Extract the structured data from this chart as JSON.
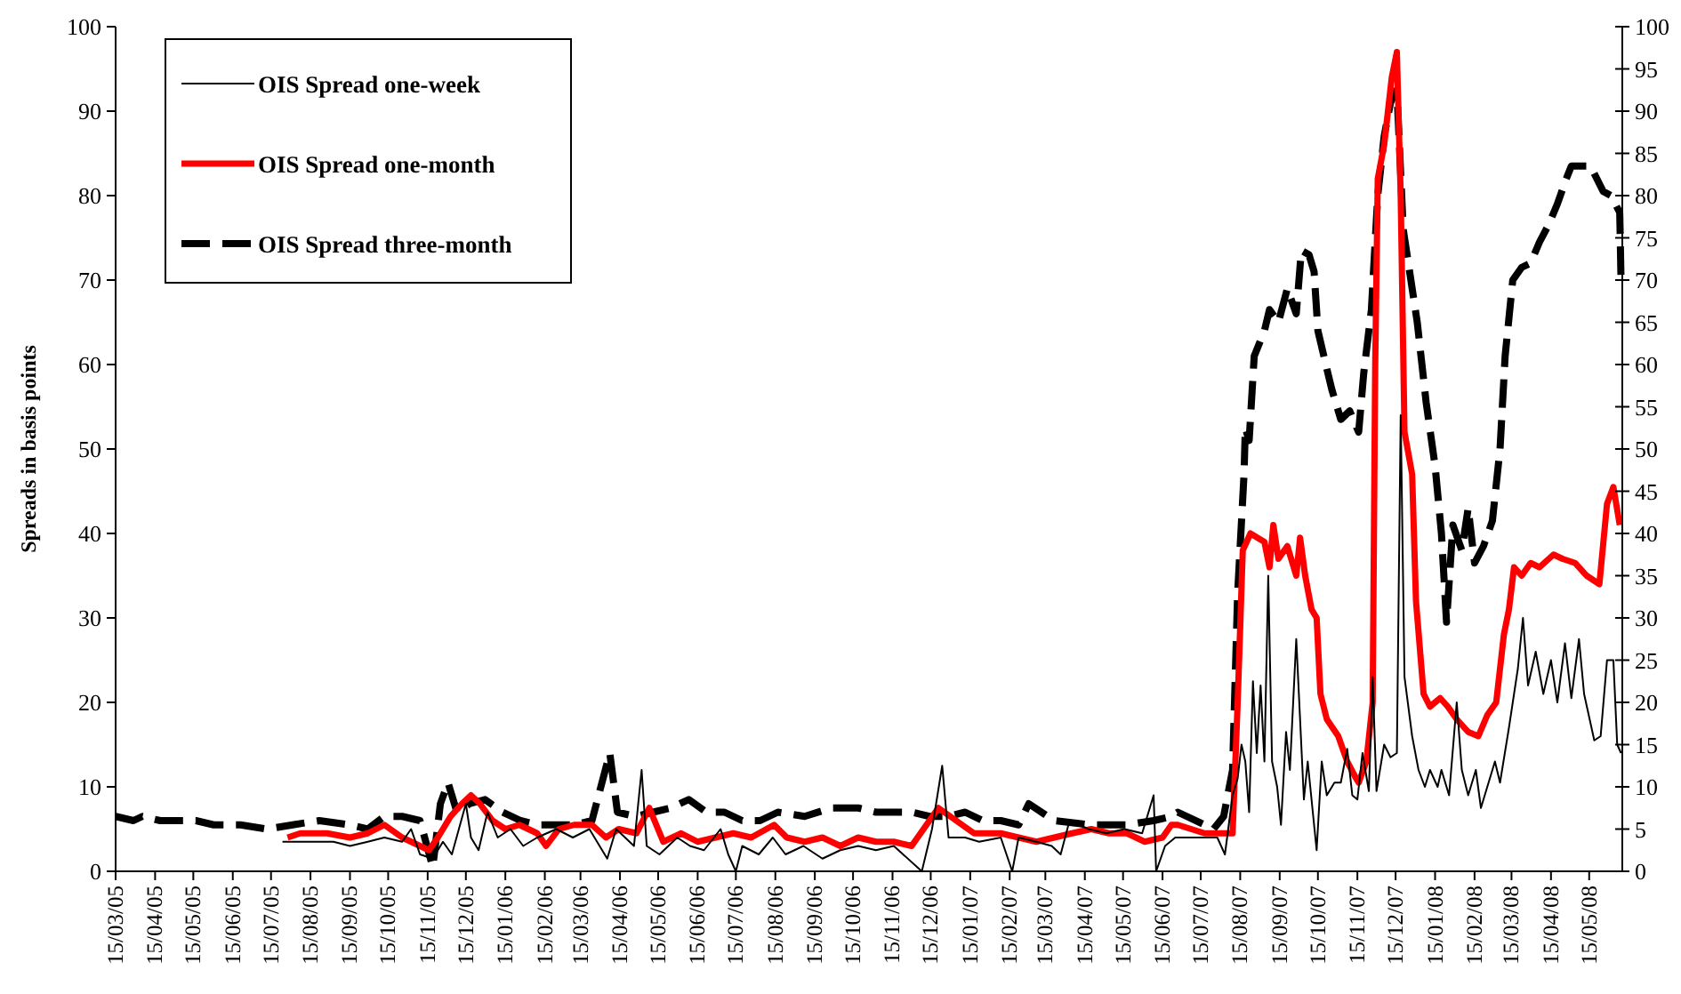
{
  "chart_data": {
    "type": "line",
    "ylabel": "Spreads in basis points",
    "legend": "top left",
    "grid": false,
    "xlim": [
      "2005-03-15",
      "2008-06-10"
    ],
    "ylim": [
      0,
      100
    ],
    "yticks": [
      0,
      10,
      20,
      30,
      40,
      50,
      60,
      70,
      80,
      90,
      100
    ],
    "y2lim": [
      0,
      100
    ],
    "y2ticks": [
      0,
      5,
      10,
      15,
      20,
      25,
      30,
      35,
      40,
      45,
      50,
      55,
      60,
      65,
      70,
      75,
      80,
      85,
      90,
      95,
      100
    ],
    "xticks": [
      {
        "value": "2005-03-15",
        "label": "15/03/05"
      },
      {
        "value": "2005-04-15",
        "label": "15/04/05"
      },
      {
        "value": "2005-05-15",
        "label": "15/05/05"
      },
      {
        "value": "2005-06-15",
        "label": "15/06/05"
      },
      {
        "value": "2005-07-15",
        "label": "15/07/05"
      },
      {
        "value": "2005-08-15",
        "label": "15/08/05"
      },
      {
        "value": "2005-09-15",
        "label": "15/09/05"
      },
      {
        "value": "2005-10-15",
        "label": "15/10/05"
      },
      {
        "value": "2005-11-15",
        "label": "15/11/05"
      },
      {
        "value": "2005-12-15",
        "label": "15/12/05"
      },
      {
        "value": "2006-01-15",
        "label": "15/01/06"
      },
      {
        "value": "2006-02-15",
        "label": "15/02/06"
      },
      {
        "value": "2006-03-15",
        "label": "15/03/06"
      },
      {
        "value": "2006-04-15",
        "label": "15/04/06"
      },
      {
        "value": "2006-05-15",
        "label": "15/05/06"
      },
      {
        "value": "2006-06-15",
        "label": "15/06/06"
      },
      {
        "value": "2006-07-15",
        "label": "15/07/06"
      },
      {
        "value": "2006-08-15",
        "label": "15/08/06"
      },
      {
        "value": "2006-09-15",
        "label": "15/09/06"
      },
      {
        "value": "2006-10-15",
        "label": "15/10/06"
      },
      {
        "value": "2006-11-15",
        "label": "15/11/06"
      },
      {
        "value": "2006-12-15",
        "label": "15/12/06"
      },
      {
        "value": "2007-01-15",
        "label": "15/01/07"
      },
      {
        "value": "2007-02-15",
        "label": "15/02/07"
      },
      {
        "value": "2007-03-15",
        "label": "15/03/07"
      },
      {
        "value": "2007-04-15",
        "label": "15/04/07"
      },
      {
        "value": "2007-05-15",
        "label": "15/05/07"
      },
      {
        "value": "2007-06-15",
        "label": "15/06/07"
      },
      {
        "value": "2007-07-15",
        "label": "15/07/07"
      },
      {
        "value": "2007-08-15",
        "label": "15/08/07"
      },
      {
        "value": "2007-09-15",
        "label": "15/09/07"
      },
      {
        "value": "2007-10-15",
        "label": "15/10/07"
      },
      {
        "value": "2007-11-15",
        "label": "15/11/07"
      },
      {
        "value": "2007-12-15",
        "label": "15/12/07"
      },
      {
        "value": "2008-01-15",
        "label": "15/01/08"
      },
      {
        "value": "2008-02-15",
        "label": "15/02/08"
      },
      {
        "value": "2008-03-15",
        "label": "15/03/08"
      },
      {
        "value": "2008-04-15",
        "label": "15/04/08"
      },
      {
        "value": "2008-05-15",
        "label": "15/05/08"
      }
    ],
    "series": [
      {
        "name": "OIS Spread one-week",
        "color": "#000000",
        "line_style": "solid",
        "x": [
          "2005-07-24",
          "2005-08-11",
          "2005-09-02",
          "2005-09-15",
          "2005-09-29",
          "2005-10-12",
          "2005-10-26",
          "2005-11-02",
          "2005-11-09",
          "2005-11-19",
          "2005-11-27",
          "2005-12-04",
          "2005-12-15",
          "2005-12-19",
          "2005-12-25",
          "2006-01-01",
          "2006-01-09",
          "2006-01-19",
          "2006-01-29",
          "2006-02-09",
          "2006-02-24",
          "2006-03-09",
          "2006-03-22",
          "2006-04-05",
          "2006-04-12",
          "2006-04-26",
          "2006-05-02",
          "2006-05-06",
          "2006-05-16",
          "2006-05-30",
          "2006-06-09",
          "2006-06-20",
          "2006-07-03",
          "2006-07-09",
          "2006-07-15",
          "2006-07-20",
          "2006-08-02",
          "2006-08-13",
          "2006-08-23",
          "2006-09-06",
          "2006-09-21",
          "2006-10-05",
          "2006-10-19",
          "2006-11-02",
          "2006-11-16",
          "2006-12-08",
          "2006-12-16",
          "2006-12-24",
          "2006-12-29",
          "2007-01-11",
          "2007-01-22",
          "2007-02-08",
          "2007-02-17",
          "2007-02-22",
          "2007-03-08",
          "2007-03-20",
          "2007-03-27",
          "2007-04-03",
          "2007-04-18",
          "2007-05-02",
          "2007-05-16",
          "2007-05-30",
          "2007-06-08",
          "2007-06-10",
          "2007-06-17",
          "2007-06-25",
          "2007-07-11",
          "2007-07-28",
          "2007-08-03",
          "2007-08-09",
          "2007-08-13",
          "2007-08-16",
          "2007-08-19",
          "2007-08-22",
          "2007-08-25",
          "2007-08-28",
          "2007-08-31",
          "2007-09-03",
          "2007-09-06",
          "2007-09-09",
          "2007-09-13",
          "2007-09-16",
          "2007-09-20",
          "2007-09-23",
          "2007-09-28",
          "2007-10-01",
          "2007-10-04",
          "2007-10-07",
          "2007-10-14",
          "2007-10-18",
          "2007-10-22",
          "2007-10-28",
          "2007-11-02",
          "2007-11-07",
          "2007-11-11",
          "2007-11-15",
          "2007-11-19",
          "2007-11-24",
          "2007-11-27",
          "2007-11-30",
          "2007-12-06",
          "2007-12-11",
          "2007-12-16",
          "2007-12-19",
          "2007-12-22",
          "2007-12-28",
          "2008-01-02",
          "2008-01-07",
          "2008-01-11",
          "2008-01-17",
          "2008-01-20",
          "2008-01-26",
          "2008-02-01",
          "2008-02-05",
          "2008-02-10",
          "2008-02-16",
          "2008-02-20",
          "2008-02-25",
          "2008-03-02",
          "2008-03-06",
          "2008-03-13",
          "2008-03-20",
          "2008-03-24",
          "2008-03-28",
          "2008-04-03",
          "2008-04-09",
          "2008-04-15",
          "2008-04-20",
          "2008-04-26",
          "2008-05-01",
          "2008-05-07",
          "2008-05-11",
          "2008-05-19",
          "2008-05-24",
          "2008-05-29",
          "2008-06-03",
          "2008-06-06",
          "2008-06-09"
        ],
        "values": [
          3.5,
          3.5,
          3.5,
          3,
          3.5,
          4,
          3.5,
          5,
          2,
          1.5,
          3.5,
          2,
          8,
          4,
          2.5,
          7,
          4,
          5,
          3,
          4,
          5,
          4,
          5,
          1.5,
          5,
          3,
          12,
          3,
          2,
          4,
          3,
          2.5,
          5,
          2,
          0,
          3,
          2,
          4,
          2,
          3,
          1.5,
          2.5,
          3,
          2.5,
          3,
          0,
          5,
          12.5,
          4,
          4,
          3.5,
          4,
          0,
          4,
          3.5,
          3,
          2,
          6,
          5,
          4.5,
          5,
          4.5,
          9,
          0,
          3,
          4,
          4,
          4,
          2,
          9,
          11,
          15,
          13,
          7,
          22.5,
          14,
          22,
          13,
          35,
          13,
          10,
          5.5,
          16.5,
          12,
          27.5,
          18,
          8.5,
          13,
          2.5,
          13,
          9,
          10.5,
          10.5,
          14.5,
          9,
          8.5,
          14,
          9.5,
          23,
          9.5,
          15,
          13.5,
          14,
          54,
          23,
          16,
          12,
          10,
          12,
          10,
          12,
          9,
          20,
          12,
          9,
          12,
          7.5,
          10,
          13,
          10.5,
          17,
          24,
          30,
          22,
          26,
          21,
          25,
          20,
          27,
          20.5,
          27.5,
          21,
          15.5,
          16,
          25,
          25,
          15,
          14
        ]
      },
      {
        "name": "OIS Spread one-month",
        "color": "#ff0000",
        "line_style": "solid",
        "x": [
          "2005-07-28",
          "2005-08-07",
          "2005-08-28",
          "2005-09-15",
          "2005-09-29",
          "2005-10-12",
          "2005-10-26",
          "2005-11-09",
          "2005-11-16",
          "2005-11-23",
          "2005-12-03",
          "2005-12-12",
          "2005-12-19",
          "2005-12-26",
          "2006-01-05",
          "2006-01-15",
          "2006-01-26",
          "2006-02-09",
          "2006-02-16",
          "2006-02-26",
          "2006-03-10",
          "2006-03-24",
          "2006-04-04",
          "2006-04-14",
          "2006-04-28",
          "2006-05-08",
          "2006-05-19",
          "2006-06-02",
          "2006-06-15",
          "2006-06-29",
          "2006-07-13",
          "2006-07-27",
          "2006-08-14",
          "2006-08-24",
          "2006-09-07",
          "2006-09-21",
          "2006-10-05",
          "2006-10-19",
          "2006-11-02",
          "2006-11-16",
          "2006-11-30",
          "2006-12-14",
          "2006-12-21",
          "2007-01-04",
          "2007-01-18",
          "2007-02-08",
          "2007-02-22",
          "2007-03-08",
          "2007-03-22",
          "2007-04-05",
          "2007-04-20",
          "2007-05-04",
          "2007-05-18",
          "2007-06-01",
          "2007-06-15",
          "2007-06-22",
          "2007-06-27",
          "2007-07-18",
          "2007-08-09",
          "2007-08-13",
          "2007-08-17",
          "2007-08-23",
          "2007-09-03",
          "2007-09-07",
          "2007-09-10",
          "2007-09-14",
          "2007-09-21",
          "2007-09-28",
          "2007-10-01",
          "2007-10-05",
          "2007-10-10",
          "2007-10-14",
          "2007-10-17",
          "2007-10-22",
          "2007-10-31",
          "2007-11-07",
          "2007-11-14",
          "2007-11-16",
          "2007-11-22",
          "2007-11-27",
          "2007-11-29",
          "2007-12-01",
          "2007-12-06",
          "2007-12-12",
          "2007-12-16",
          "2007-12-19",
          "2007-12-22",
          "2007-12-28",
          "2007-12-31",
          "2008-01-06",
          "2008-01-11",
          "2008-01-19",
          "2008-01-25",
          "2008-02-01",
          "2008-02-10",
          "2008-02-18",
          "2008-02-25",
          "2008-03-03",
          "2008-03-09",
          "2008-03-13",
          "2008-03-17",
          "2008-03-23",
          "2008-03-30",
          "2008-04-06",
          "2008-04-17",
          "2008-04-24",
          "2008-05-04",
          "2008-05-13",
          "2008-05-23",
          "2008-05-29",
          "2008-06-03",
          "2008-06-08"
        ],
        "values": [
          4,
          4.5,
          4.5,
          4,
          4.5,
          5.5,
          4,
          3,
          2.5,
          4,
          6.5,
          8,
          9,
          8,
          6,
          5,
          5.5,
          4.5,
          3,
          5,
          5.5,
          5.5,
          4,
          5,
          4.5,
          7.5,
          3.5,
          4.5,
          3.5,
          4,
          4.5,
          4,
          5.5,
          4,
          3.5,
          4,
          3,
          4,
          3.5,
          3.5,
          3,
          6,
          7.5,
          6,
          4.5,
          4.5,
          4,
          3.5,
          4,
          4.5,
          5,
          4.5,
          4.5,
          3.5,
          4,
          5.5,
          5.5,
          4.5,
          4.5,
          20,
          38,
          40,
          39,
          36,
          41,
          37,
          38.5,
          35,
          39.5,
          35,
          31,
          30,
          21,
          18,
          16,
          13,
          11,
          10.5,
          13,
          20,
          60,
          82,
          86,
          94,
          97,
          80,
          52,
          47,
          32,
          21,
          19.5,
          20.5,
          19.5,
          18,
          16.5,
          16,
          18.5,
          20,
          28,
          31,
          36,
          35,
          36.5,
          36,
          37.5,
          37,
          36.5,
          35,
          34,
          43.5,
          45.5,
          41
        ]
      },
      {
        "name": "OIS Spread three-month",
        "color": "#000000",
        "line_style": "dashed",
        "x": [
          "2005-03-15",
          "2005-03-29",
          "2005-04-05",
          "2005-04-19",
          "2005-05-17",
          "2005-05-31",
          "2005-06-21",
          "2005-07-12",
          "2005-08-01",
          "2005-08-22",
          "2005-09-15",
          "2005-09-29",
          "2005-10-12",
          "2005-10-26",
          "2005-11-09",
          "2005-11-19",
          "2005-11-25",
          "2005-12-01",
          "2005-12-08",
          "2005-12-18",
          "2005-12-30",
          "2006-01-13",
          "2006-01-27",
          "2006-02-10",
          "2006-02-24",
          "2006-03-10",
          "2006-03-24",
          "2006-04-07",
          "2006-04-13",
          "2006-04-27",
          "2006-05-11",
          "2006-05-25",
          "2006-06-08",
          "2006-06-22",
          "2006-07-06",
          "2006-07-20",
          "2006-08-03",
          "2006-08-17",
          "2006-09-07",
          "2006-09-28",
          "2006-10-19",
          "2006-11-02",
          "2006-11-16",
          "2006-11-30",
          "2006-12-14",
          "2006-12-28",
          "2007-01-11",
          "2007-01-25",
          "2007-02-08",
          "2007-02-22",
          "2007-03-02",
          "2007-03-22",
          "2007-04-20",
          "2007-05-18",
          "2007-06-08",
          "2007-06-22",
          "2007-06-27",
          "2007-07-25",
          "2007-08-02",
          "2007-08-09",
          "2007-08-13",
          "2007-08-18",
          "2007-08-19",
          "2007-08-22",
          "2007-08-26",
          "2007-09-03",
          "2007-09-07",
          "2007-09-14",
          "2007-09-21",
          "2007-09-28",
          "2007-10-02",
          "2007-10-08",
          "2007-10-12",
          "2007-10-15",
          "2007-10-22",
          "2007-10-26",
          "2007-11-02",
          "2007-11-09",
          "2007-11-16",
          "2007-11-20",
          "2007-11-26",
          "2007-11-28",
          "2007-12-01",
          "2007-12-06",
          "2007-12-11",
          "2007-12-16",
          "2007-12-21",
          "2007-12-25",
          "2008-01-01",
          "2008-01-08",
          "2008-01-15",
          "2008-01-20",
          "2008-01-24",
          "2008-01-29",
          "2008-02-05",
          "2008-02-10",
          "2008-02-15",
          "2008-02-22",
          "2008-02-29",
          "2008-03-06",
          "2008-03-10",
          "2008-03-16",
          "2008-03-23",
          "2008-03-30",
          "2008-04-06",
          "2008-04-13",
          "2008-04-20",
          "2008-04-27",
          "2008-05-01",
          "2008-05-16",
          "2008-05-26",
          "2008-06-01",
          "2008-06-08",
          "2008-06-09"
        ],
        "values": [
          6.5,
          6,
          6.5,
          6,
          6,
          5.5,
          5.5,
          5,
          5.5,
          6,
          5.5,
          5,
          6.5,
          6.5,
          6,
          0.5,
          8,
          10.5,
          7,
          8,
          8.5,
          7,
          6,
          5.5,
          5.5,
          5.5,
          6,
          14,
          7,
          6.5,
          7,
          7.5,
          8.5,
          7,
          7,
          6,
          6,
          7,
          6.5,
          7.5,
          7.5,
          7,
          7,
          7,
          6.5,
          6.5,
          7,
          6,
          6,
          5.5,
          8,
          6,
          5.5,
          5.5,
          6,
          6.5,
          7,
          5,
          6.5,
          12,
          33,
          47,
          52.5,
          51,
          61,
          64,
          66.5,
          65,
          69,
          66,
          73.5,
          73,
          71,
          64,
          59.5,
          57,
          53.5,
          54.5,
          52,
          59,
          66.5,
          72,
          80,
          87,
          91,
          92.5,
          76,
          72,
          65,
          55.5,
          48,
          40,
          29.5,
          41,
          38,
          43,
          36.5,
          38.5,
          41.5,
          50,
          61,
          70,
          71.5,
          72,
          74.5,
          76.5,
          79,
          82,
          83.5,
          83.5,
          80.5,
          80,
          78,
          70
        ]
      }
    ]
  }
}
